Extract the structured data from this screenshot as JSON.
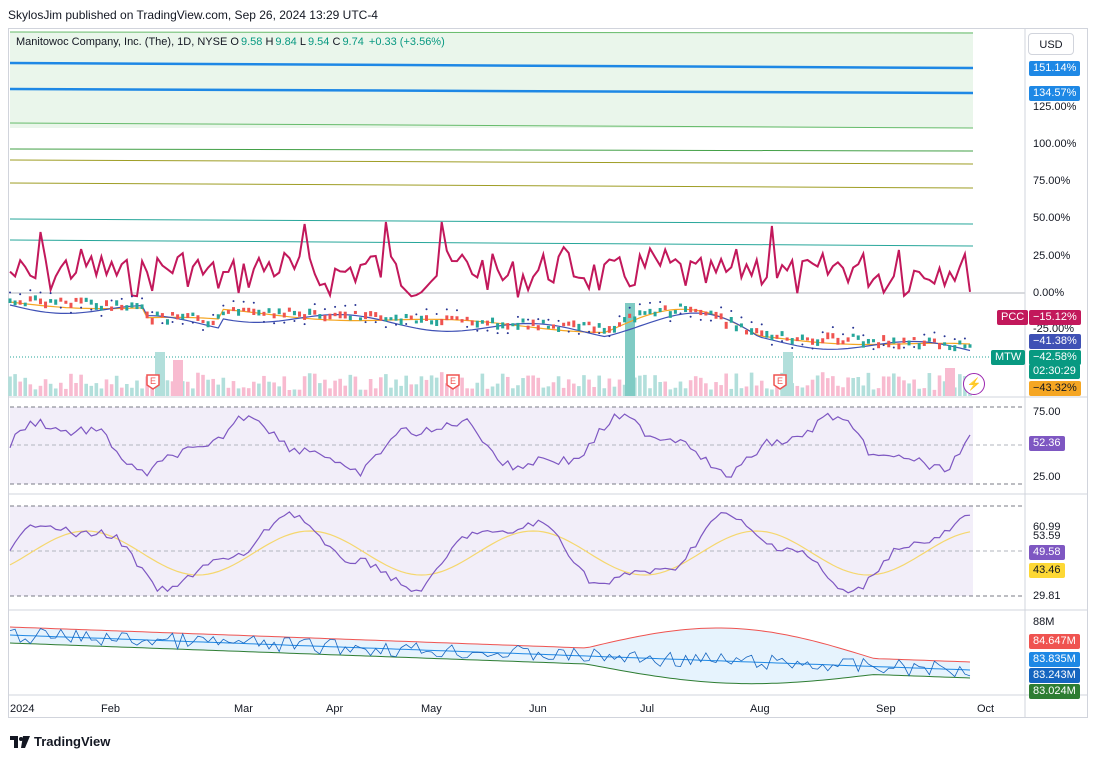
{
  "header": {
    "text": "SkylosJim published on TradingView.com, Sep 26, 2024 13:29 UTC-4"
  },
  "legend": {
    "name": "Manitowoc Company, Inc. (The), 1D, NYSE",
    "open_key": "O",
    "open": "9.58",
    "high_key": "H",
    "high": "9.84",
    "low_key": "L",
    "low": "9.54",
    "close_key": "C",
    "close": "9.74",
    "change": "+0.33 (+3.56%)"
  },
  "currency": "USD",
  "price_axis": [
    "125.00%",
    "100.00%",
    "75.00%",
    "50.00%",
    "25.00%",
    "0.00%",
    "-25.00%"
  ],
  "badges": {
    "b1": "151.14%",
    "b2": "134.57%",
    "pcc_tag": "PCC",
    "pcc_val": "−15.12%",
    "blue_val": "−41.38%",
    "mtw_tag": "MTW",
    "mtw_val": "−42.58%",
    "countdown": "02:30:29",
    "orange_val": "−43.32%"
  },
  "rsi_pane": {
    "top": "75.00",
    "bottom": "25.00",
    "value": "52.36"
  },
  "osc_pane": {
    "top": "60.99",
    "upper": "53.59",
    "value1": "49.58",
    "value2": "43.46",
    "lower": "29.81"
  },
  "vol_pane": {
    "top": "88M",
    "v1": "84.647M",
    "v2": "83.835M",
    "v3": "83.243M",
    "v4": "83.024M"
  },
  "dates": [
    "2024",
    "Feb",
    "Mar",
    "Apr",
    "May",
    "Jun",
    "Jul",
    "Aug",
    "Sep",
    "Oct"
  ],
  "earnings_mark": "E",
  "footer": {
    "brand": "TradingView"
  },
  "colors": {
    "pcc_line": "#c2185b",
    "blue_lines": "#1e88e5",
    "up": "#26a69a",
    "down": "#ef5350",
    "rsi": "#7e57c2"
  }
}
